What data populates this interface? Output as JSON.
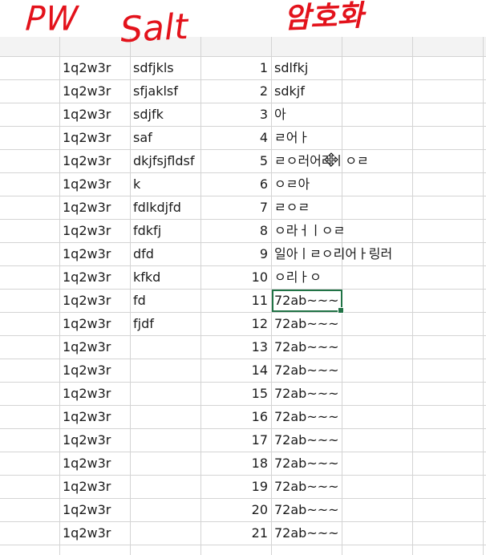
{
  "annotations": {
    "pw": "PW",
    "salt": "Salt",
    "encryption": "암호화"
  },
  "rows": [
    {
      "pw": "1q2w3r",
      "salt": "sdfjkls",
      "num": "1",
      "enc": "sdlfkj"
    },
    {
      "pw": "1q2w3r",
      "salt": "sfjaklsf",
      "num": "2",
      "enc": "sdkjf"
    },
    {
      "pw": "1q2w3r",
      "salt": "sdjfk",
      "num": "3",
      "enc": "아"
    },
    {
      "pw": "1q2w3r",
      "salt": "saf",
      "num": "4",
      "enc": "ㄹ어ㅏ"
    },
    {
      "pw": "1q2w3r",
      "salt": "dkjfsjfldsf",
      "num": "5",
      "enc": "ㄹㅇ러어라ㅣㅇㄹ"
    },
    {
      "pw": "1q2w3r",
      "salt": "k",
      "num": "6",
      "enc": "ㅇㄹ아"
    },
    {
      "pw": "1q2w3r",
      "salt": "fdlkdjfd",
      "num": "7",
      "enc": "ㄹㅇㄹ"
    },
    {
      "pw": "1q2w3r",
      "salt": "fdkfj",
      "num": "8",
      "enc": "ㅇ라ㅓㅣㅇㄹ"
    },
    {
      "pw": "1q2w3r",
      "salt": "dfd",
      "num": "9",
      "enc": "일아ㅣㄹㅇ리어ㅏ링러"
    },
    {
      "pw": "1q2w3r",
      "salt": "kfkd",
      "num": "10",
      "enc": "ㅇ리ㅏㅇ"
    },
    {
      "pw": "1q2w3r",
      "salt": "fd",
      "num": "11",
      "enc": "72ab~~~"
    },
    {
      "pw": "1q2w3r",
      "salt": "fjdf",
      "num": "12",
      "enc": "72ab~~~"
    },
    {
      "pw": "1q2w3r",
      "salt": "",
      "num": "13",
      "enc": "72ab~~~"
    },
    {
      "pw": "1q2w3r",
      "salt": "",
      "num": "14",
      "enc": "72ab~~~"
    },
    {
      "pw": "1q2w3r",
      "salt": "",
      "num": "15",
      "enc": "72ab~~~"
    },
    {
      "pw": "1q2w3r",
      "salt": "",
      "num": "16",
      "enc": "72ab~~~"
    },
    {
      "pw": "1q2w3r",
      "salt": "",
      "num": "17",
      "enc": "72ab~~~"
    },
    {
      "pw": "1q2w3r",
      "salt": "",
      "num": "18",
      "enc": "72ab~~~"
    },
    {
      "pw": "1q2w3r",
      "salt": "",
      "num": "19",
      "enc": "72ab~~~"
    },
    {
      "pw": "1q2w3r",
      "salt": "",
      "num": "20",
      "enc": "72ab~~~"
    },
    {
      "pw": "1q2w3r",
      "salt": "",
      "num": "21",
      "enc": "72ab~~~"
    }
  ],
  "selected_row": 10,
  "colors": {
    "annotation_red": "#e3121b",
    "selection_green": "#217346",
    "grid_line": "#d4d4d4"
  },
  "icons": {
    "cursor": "move-cursor-icon"
  }
}
